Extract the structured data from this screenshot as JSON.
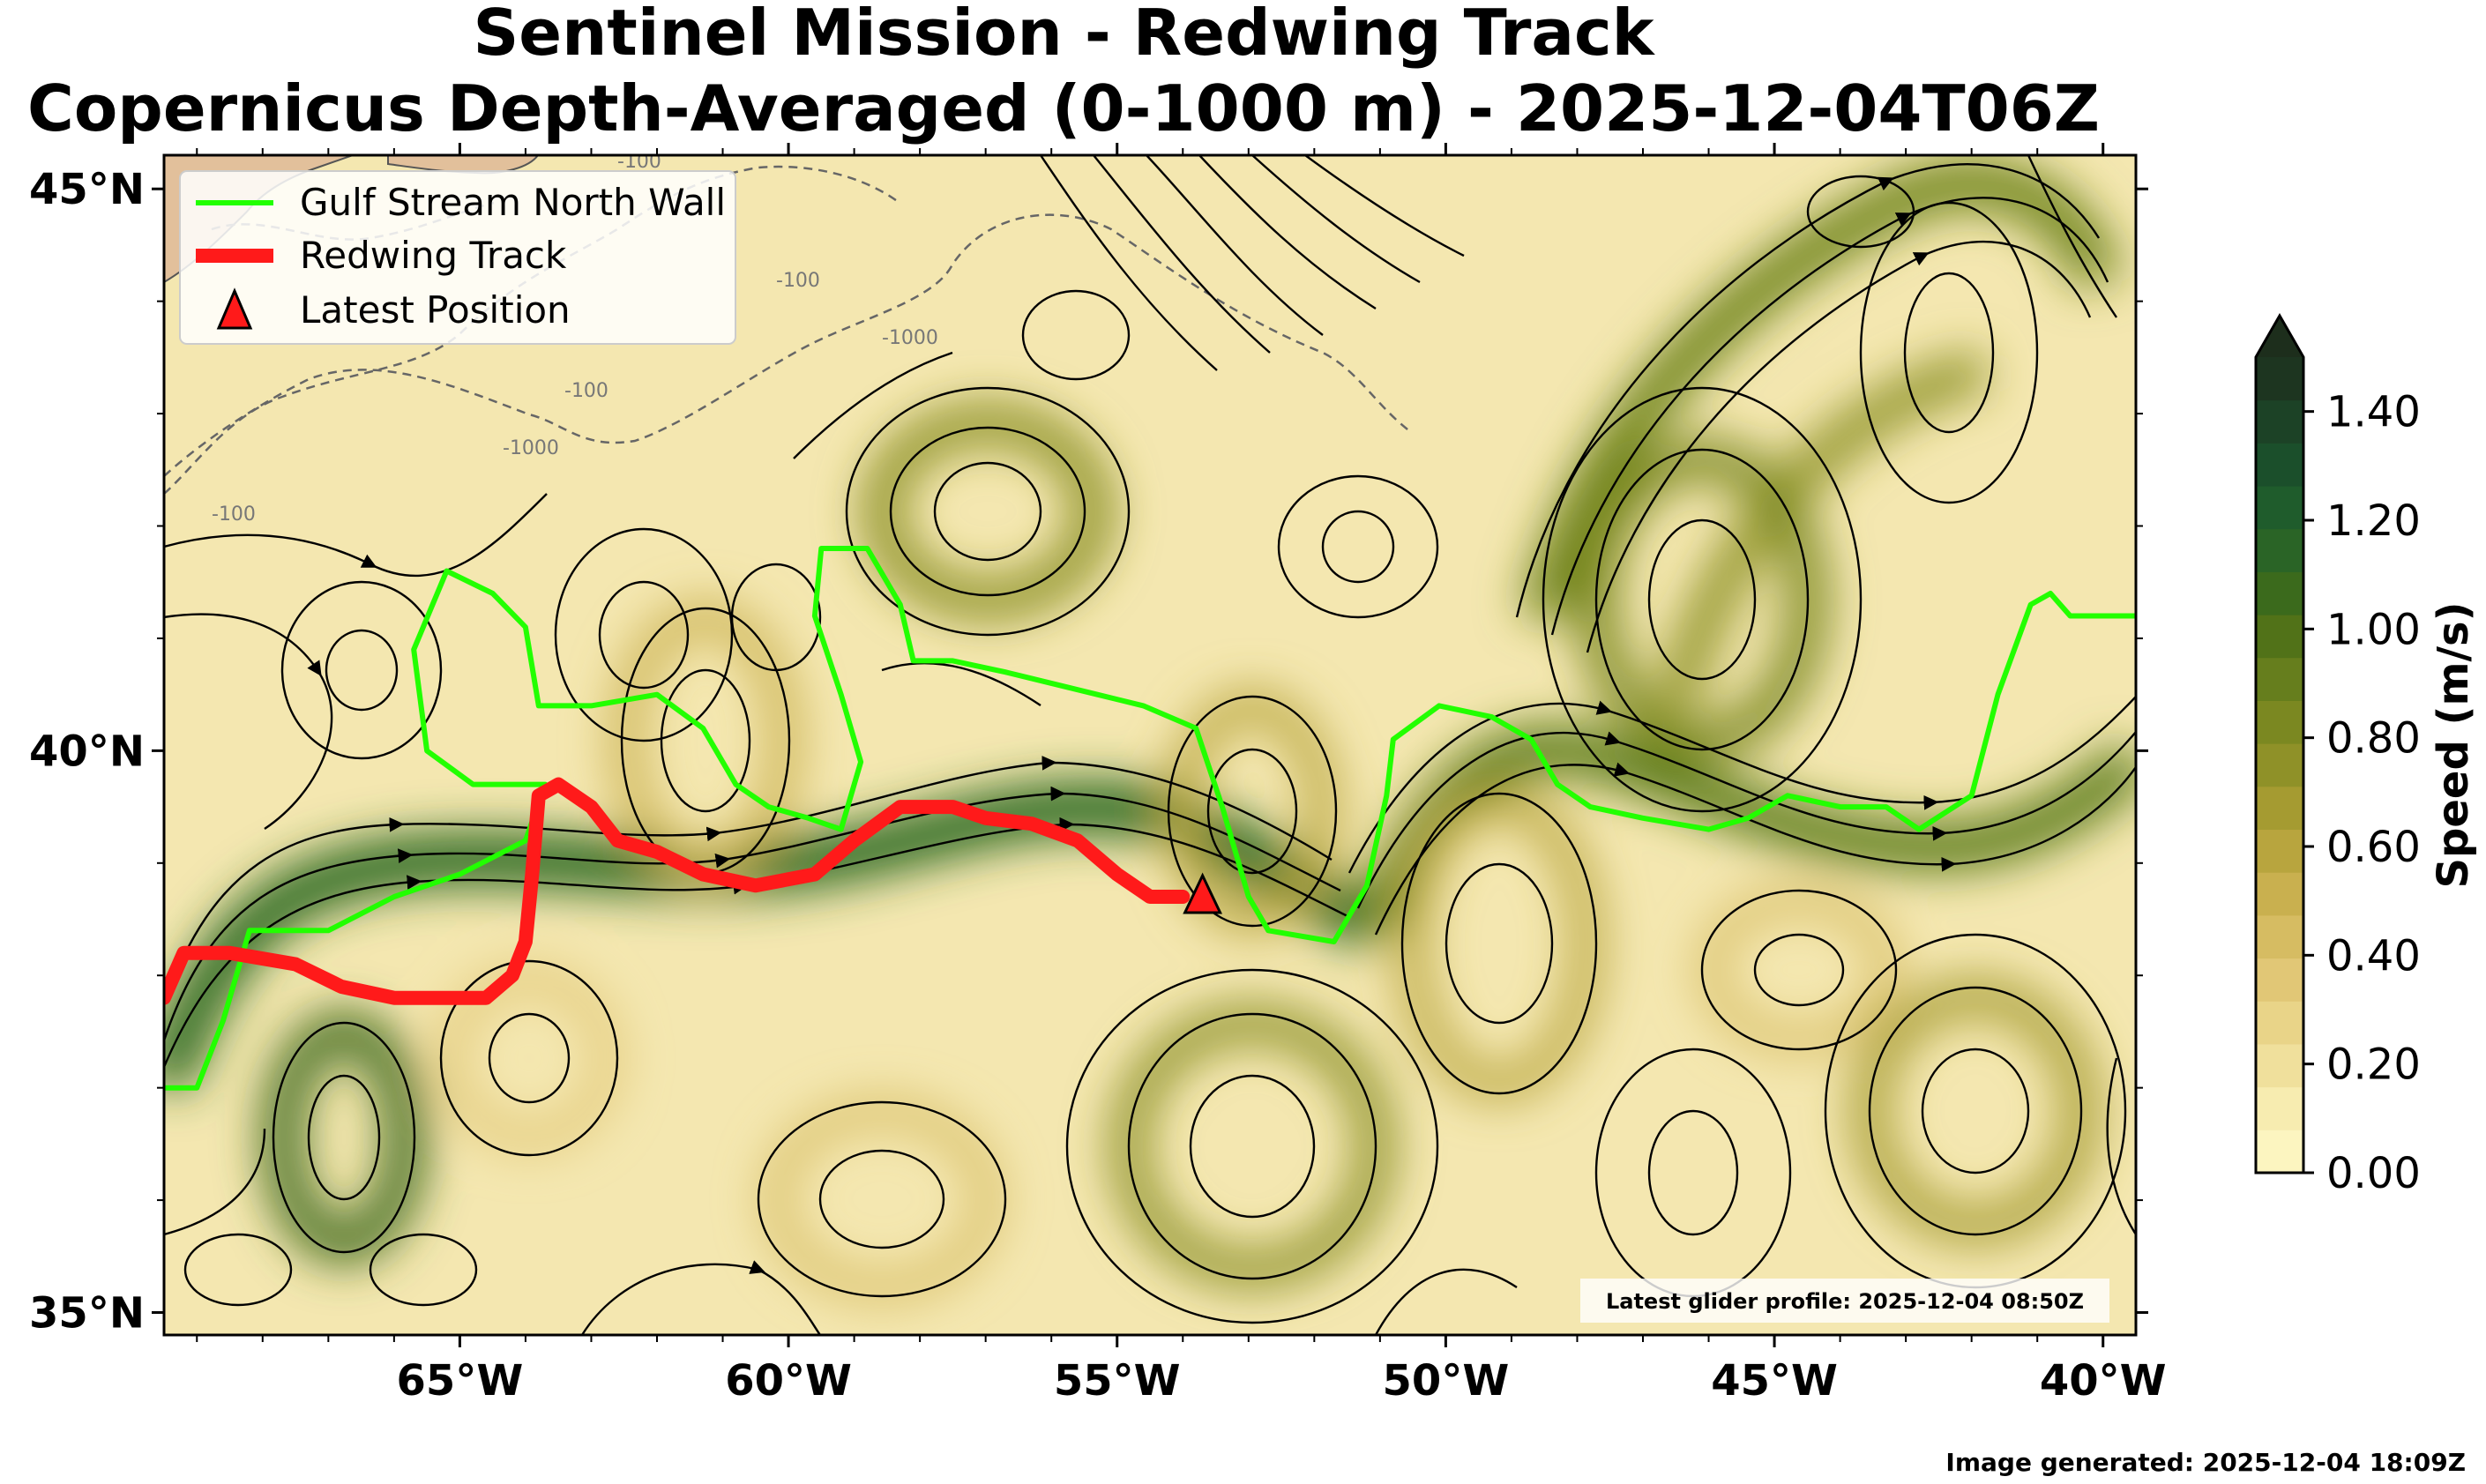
{
  "title": {
    "line1": "Sentinel Mission - Redwing Track",
    "line2": "Copernicus Depth-Averaged (0-1000 m) - 2025-12-04T06Z"
  },
  "map": {
    "lon_range": [
      -69.5,
      -39.5
    ],
    "lat_range": [
      34.8,
      45.3
    ],
    "x_ticks": [
      {
        "lon": -65,
        "label": "65°W"
      },
      {
        "lon": -60,
        "label": "60°W"
      },
      {
        "lon": -55,
        "label": "55°W"
      },
      {
        "lon": -50,
        "label": "50°W"
      },
      {
        "lon": -45,
        "label": "45°W"
      },
      {
        "lon": -40,
        "label": "40°W"
      }
    ],
    "y_ticks": [
      {
        "lat": 45,
        "label": "45°N"
      },
      {
        "lat": 40,
        "label": "40°N"
      },
      {
        "lat": 35,
        "label": "35°N"
      }
    ],
    "isobath_labels": [
      "-100",
      "-100",
      "-100",
      "-1000",
      "-1000",
      "-100"
    ],
    "colors": {
      "land": "#e2c09b",
      "track": "#ff1a1a",
      "gulf_stream": "#22ff00",
      "marker": "#ff1a1a"
    }
  },
  "legend": {
    "items": [
      {
        "label": "Gulf Stream North Wall",
        "color": "#22ff00",
        "symbol": "line"
      },
      {
        "label": "Redwing Track",
        "color": "#ff1a1a",
        "symbol": "thick-line"
      },
      {
        "label": "Latest Position",
        "color": "#ff1a1a",
        "symbol": "triangle"
      }
    ],
    "placement": "top-left"
  },
  "colorbar": {
    "label": "Speed (m/s)",
    "ticks": [
      "0.00",
      "0.20",
      "0.40",
      "0.60",
      "0.80",
      "1.00",
      "1.20",
      "1.40"
    ],
    "range": [
      0,
      1.5
    ],
    "extend": "max",
    "colors": [
      "#fcf5c0",
      "#f7ecb0",
      "#f0e09c",
      "#e9d488",
      "#e1c776",
      "#d6bc62",
      "#c9b04f",
      "#b8a53e",
      "#a59b31",
      "#8f9128",
      "#7b8821",
      "#667e1d",
      "#517218",
      "#3b6a1c",
      "#2a6426",
      "#1f5c2c",
      "#1b4f2b",
      "#1c4226",
      "#1d3520"
    ]
  },
  "gulf_stream_wall": [
    [
      -69.5,
      37.0
    ],
    [
      -69.0,
      37.0
    ],
    [
      -68.6,
      37.6
    ],
    [
      -68.2,
      38.4
    ],
    [
      -67.0,
      38.4
    ],
    [
      -66.0,
      38.7
    ],
    [
      -65.0,
      38.9
    ],
    [
      -64.0,
      39.2
    ],
    [
      -63.7,
      39.7
    ],
    [
      -64.3,
      39.7
    ],
    [
      -64.8,
      39.7
    ],
    [
      -65.5,
      40.0
    ],
    [
      -65.7,
      40.9
    ],
    [
      -65.2,
      41.6
    ],
    [
      -64.5,
      41.4
    ],
    [
      -64.0,
      41.1
    ],
    [
      -63.8,
      40.4
    ],
    [
      -63.0,
      40.4
    ],
    [
      -62.0,
      40.5
    ],
    [
      -61.3,
      40.2
    ],
    [
      -60.8,
      39.7
    ],
    [
      -60.3,
      39.5
    ],
    [
      -59.7,
      39.4
    ],
    [
      -59.2,
      39.3
    ],
    [
      -58.9,
      39.9
    ],
    [
      -59.2,
      40.5
    ],
    [
      -59.6,
      41.2
    ],
    [
      -59.5,
      41.8
    ],
    [
      -58.8,
      41.8
    ],
    [
      -58.3,
      41.3
    ],
    [
      -58.1,
      40.8
    ],
    [
      -57.5,
      40.8
    ],
    [
      -56.7,
      40.7
    ],
    [
      -56.0,
      40.6
    ],
    [
      -55.3,
      40.5
    ],
    [
      -54.6,
      40.4
    ],
    [
      -53.8,
      40.2
    ],
    [
      -53.4,
      39.5
    ],
    [
      -53.0,
      38.7
    ],
    [
      -52.7,
      38.4
    ],
    [
      -51.7,
      38.3
    ],
    [
      -51.2,
      38.8
    ],
    [
      -50.9,
      39.6
    ],
    [
      -50.8,
      40.1
    ],
    [
      -50.1,
      40.4
    ],
    [
      -49.3,
      40.3
    ],
    [
      -48.7,
      40.1
    ],
    [
      -48.3,
      39.7
    ],
    [
      -47.8,
      39.5
    ],
    [
      -47.0,
      39.4
    ],
    [
      -46.0,
      39.3
    ],
    [
      -45.4,
      39.4
    ],
    [
      -44.8,
      39.6
    ],
    [
      -44.0,
      39.5
    ],
    [
      -43.3,
      39.5
    ],
    [
      -42.8,
      39.3
    ],
    [
      -42.0,
      39.6
    ],
    [
      -41.6,
      40.5
    ],
    [
      -41.1,
      41.3
    ],
    [
      -40.8,
      41.4
    ],
    [
      -40.5,
      41.2
    ],
    [
      -39.5,
      41.2
    ]
  ],
  "glider_track": [
    [
      -69.5,
      37.8
    ],
    [
      -69.2,
      38.2
    ],
    [
      -68.5,
      38.2
    ],
    [
      -67.5,
      38.1
    ],
    [
      -66.8,
      37.9
    ],
    [
      -66.0,
      37.8
    ],
    [
      -65.2,
      37.8
    ],
    [
      -64.6,
      37.8
    ],
    [
      -64.2,
      38.0
    ],
    [
      -64.0,
      38.3
    ],
    [
      -63.9,
      38.9
    ],
    [
      -63.8,
      39.6
    ],
    [
      -63.5,
      39.7
    ],
    [
      -63.0,
      39.5
    ],
    [
      -62.6,
      39.2
    ],
    [
      -62.0,
      39.1
    ],
    [
      -61.3,
      38.9
    ],
    [
      -60.5,
      38.8
    ],
    [
      -59.6,
      38.9
    ],
    [
      -59.0,
      39.2
    ],
    [
      -58.3,
      39.5
    ],
    [
      -57.5,
      39.5
    ],
    [
      -57.0,
      39.4
    ],
    [
      -56.3,
      39.35
    ],
    [
      -55.6,
      39.2
    ],
    [
      -55.0,
      38.9
    ],
    [
      -54.5,
      38.7
    ],
    [
      -54.0,
      38.7
    ]
  ],
  "latest_position": {
    "lon": -53.7,
    "lat": 38.7
  },
  "footer": {
    "latest_profile": "Latest glider profile: 2025-12-04 08:50Z",
    "generated": "Image generated: 2025-12-04 18:09Z"
  }
}
